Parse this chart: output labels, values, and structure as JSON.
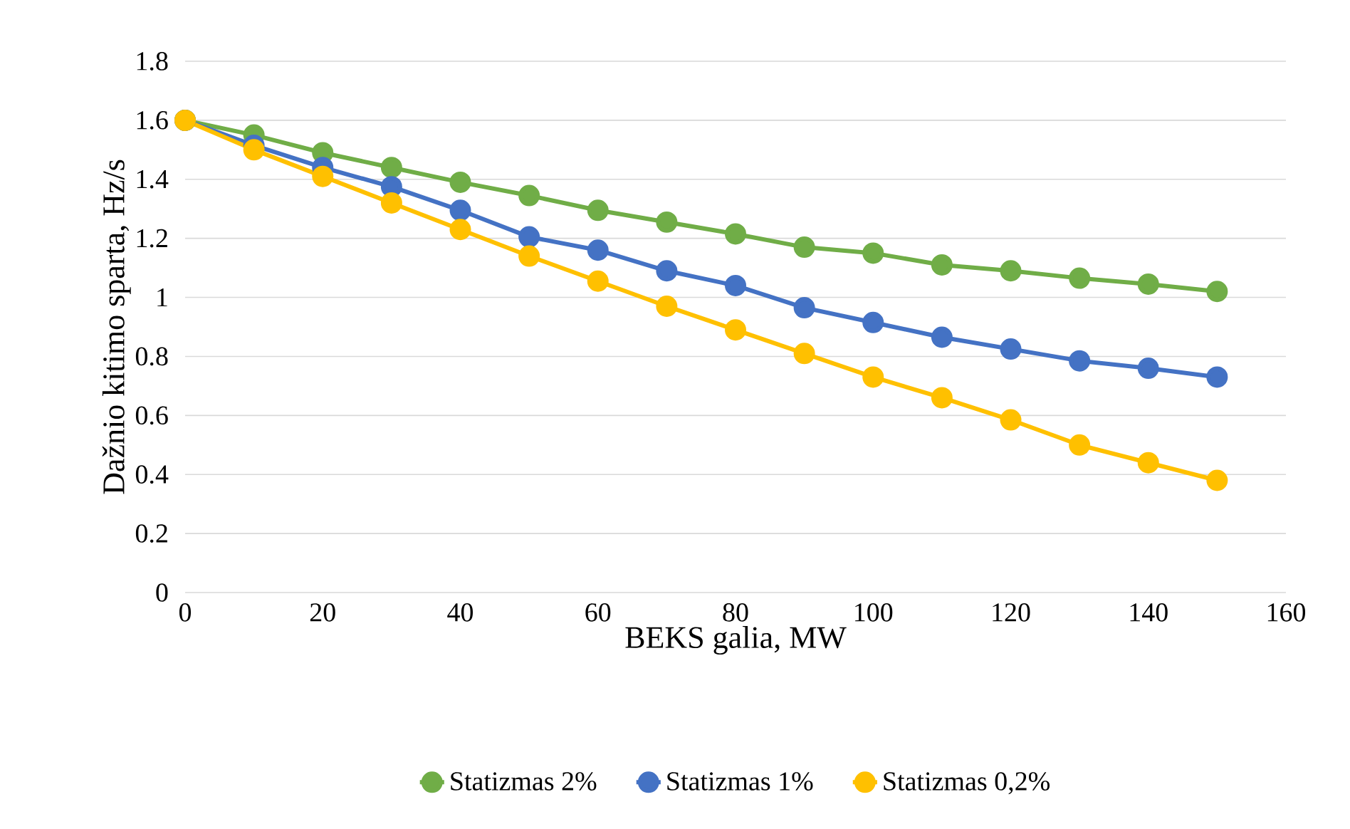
{
  "chart_data": {
    "type": "line",
    "xlabel": "BEKS galia, MW",
    "ylabel": "Dažnio kitimo sparta, Hz/s",
    "x": [
      0,
      10,
      20,
      30,
      40,
      50,
      60,
      70,
      80,
      90,
      100,
      110,
      120,
      130,
      140,
      150
    ],
    "series": [
      {
        "name": "Statizmas 2%",
        "color": "#70ad47",
        "values": [
          1.6,
          1.55,
          1.49,
          1.44,
          1.39,
          1.345,
          1.295,
          1.255,
          1.215,
          1.17,
          1.15,
          1.11,
          1.09,
          1.065,
          1.045,
          1.02
        ]
      },
      {
        "name": "Statizmas 1%",
        "color": "#4472c4",
        "values": [
          1.6,
          1.515,
          1.44,
          1.375,
          1.295,
          1.205,
          1.16,
          1.09,
          1.04,
          0.965,
          0.915,
          0.865,
          0.825,
          0.785,
          0.76,
          0.73
        ]
      },
      {
        "name": "Statizmas 0,2%",
        "color": "#ffc000",
        "values": [
          1.6,
          1.5,
          1.41,
          1.32,
          1.23,
          1.14,
          1.055,
          0.97,
          0.89,
          0.81,
          0.73,
          0.66,
          0.585,
          0.5,
          0.44,
          0.38
        ]
      }
    ],
    "xlim": [
      0,
      160
    ],
    "xticks": [
      0,
      20,
      40,
      60,
      80,
      100,
      120,
      140,
      160
    ],
    "ylim": [
      0,
      1.8
    ],
    "yticks": [
      0,
      0.2,
      0.4,
      0.6,
      0.8,
      1,
      1.2,
      1.4,
      1.6,
      1.8
    ],
    "grid": "y",
    "legend": "bottom",
    "marker": "circle",
    "line_style": "solid"
  }
}
